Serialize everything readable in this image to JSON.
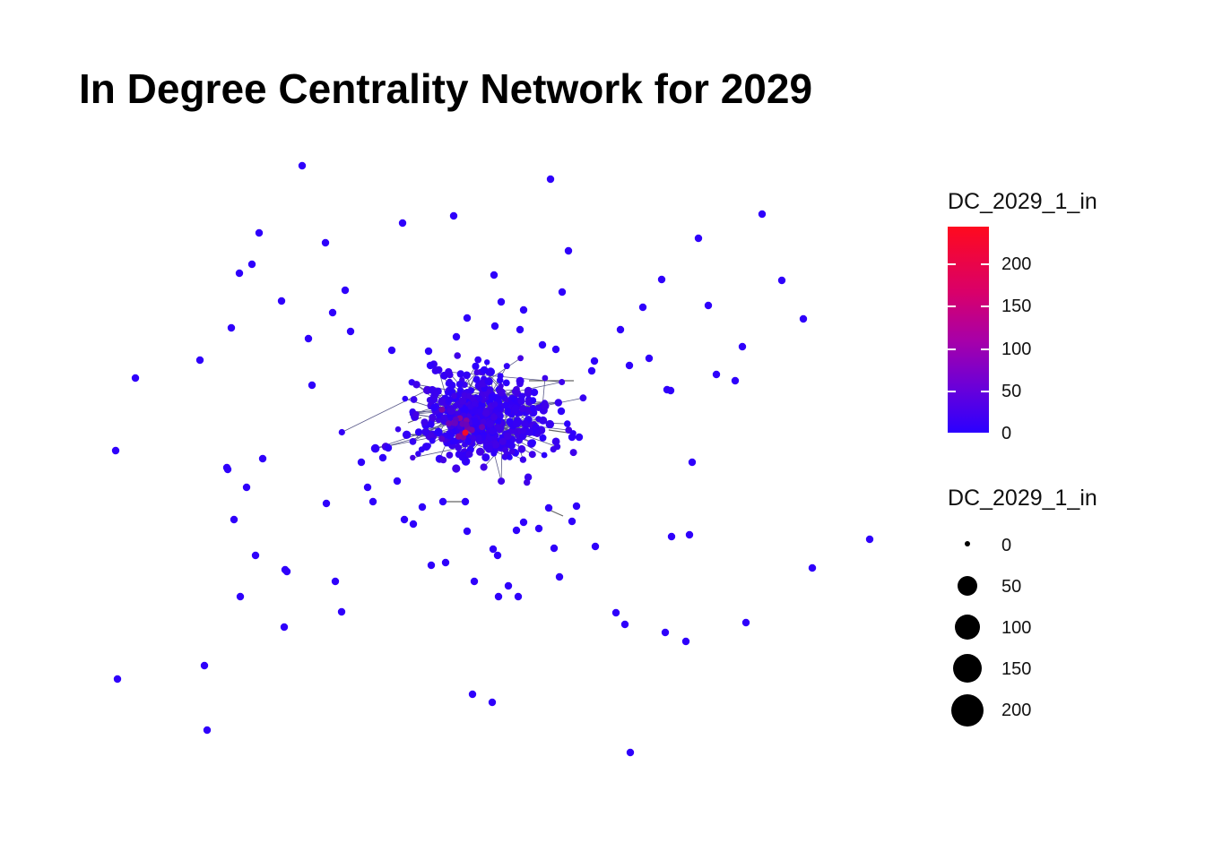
{
  "title": "In Degree Centrality Network for 2029",
  "colors": {
    "low": "#2b00ff",
    "high": "#ff0a1e",
    "edge": "#555555",
    "background": "#ffffff"
  },
  "legend_color": {
    "title": "DC_2029_1_in",
    "breaks": [
      "200",
      "150",
      "100",
      "50",
      "0"
    ],
    "range": [
      0,
      245
    ]
  },
  "legend_size": {
    "title": "DC_2029_1_in",
    "breaks": [
      "0",
      "50",
      "100",
      "150",
      "200"
    ]
  },
  "chart_data": {
    "type": "scatter",
    "title": "In Degree Centrality Network for 2029",
    "variable": "DC_2029_1_in",
    "color_scale": {
      "low": "#2b00ff",
      "high": "#ff0a1e",
      "min": 0,
      "max": 245
    },
    "size_breaks": [
      0,
      50,
      100,
      150,
      200
    ],
    "note_nodes": "Dense central cluster of a few hundred nodes (mostly low in-degree, blue) with one hub node of high in-degree (red) near the centre; sparse outlying nodes scattered around."
  }
}
